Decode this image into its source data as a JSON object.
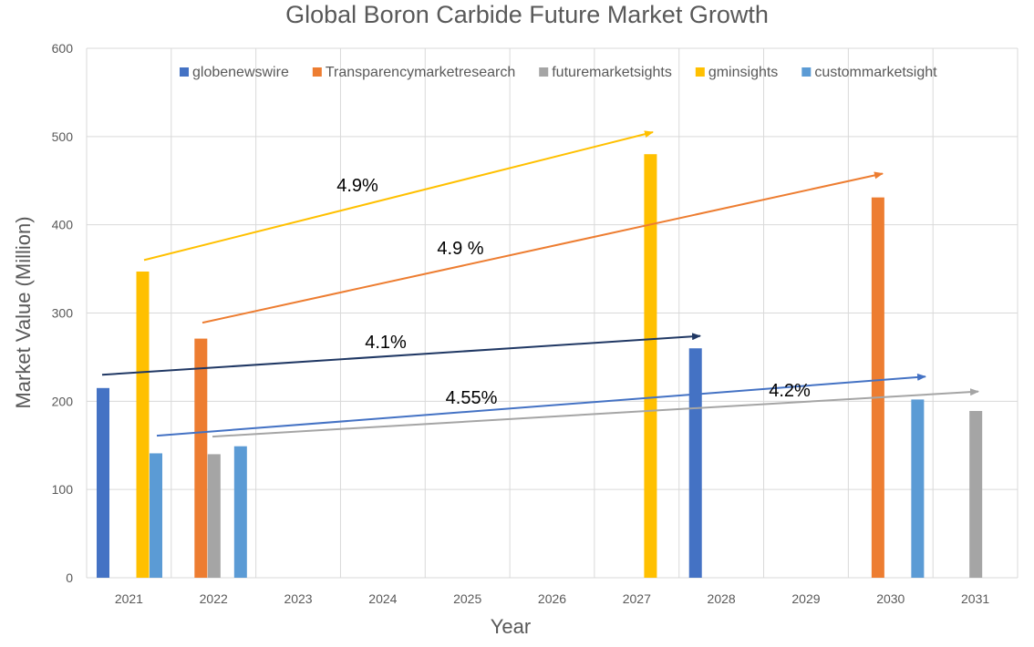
{
  "chart_data": {
    "type": "bar",
    "title": "Global Boron Carbide Future Market Growth",
    "xlabel": "Year",
    "ylabel": "Market Value (Million)",
    "ylim": [
      0,
      600
    ],
    "yticks": [
      0,
      100,
      200,
      300,
      400,
      500,
      600
    ],
    "categories": [
      "2021",
      "2022",
      "2023",
      "2024",
      "2025",
      "2026",
      "2027",
      "2028",
      "2029",
      "2030",
      "2031"
    ],
    "grid": true,
    "legend_position": "top",
    "series": [
      {
        "name": "globenewswire",
        "color": "#4472C4",
        "values": [
          215,
          null,
          null,
          null,
          null,
          null,
          null,
          260,
          null,
          null,
          null
        ]
      },
      {
        "name": "Transparencymarketresearch",
        "color": "#ED7D31",
        "values": [
          null,
          271,
          null,
          null,
          null,
          null,
          null,
          null,
          null,
          431,
          null
        ]
      },
      {
        "name": "futuremarketsights",
        "color": "#A5A5A5",
        "values": [
          null,
          140,
          null,
          null,
          null,
          null,
          null,
          null,
          null,
          null,
          189
        ]
      },
      {
        "name": "gminsights",
        "color": "#FFC000",
        "values": [
          347,
          null,
          null,
          null,
          null,
          null,
          480,
          null,
          null,
          null,
          null
        ]
      },
      {
        "name": "custommarketsight",
        "color": "#5B9BD5",
        "values": [
          141,
          149,
          null,
          null,
          null,
          null,
          null,
          null,
          null,
          202,
          null
        ]
      }
    ],
    "annotations": [
      {
        "text": "4.9%",
        "color": "#FFC000",
        "from": {
          "x": "2021",
          "y": 360
        },
        "to": {
          "x": "2027",
          "y": 505
        }
      },
      {
        "text": "4.9 %",
        "color": "#ED7D31",
        "from": {
          "x": "2022",
          "y": 289
        },
        "to": {
          "x": "2030",
          "y": 458
        }
      },
      {
        "text": "4.1%",
        "color": "#203864",
        "from": {
          "x": "2021",
          "y": 230
        },
        "to": {
          "x": "2028",
          "y": 274
        }
      },
      {
        "text": "4.55%",
        "color": "#4472C4",
        "from": {
          "x": "2021",
          "y": 161
        },
        "to": {
          "x": "2030",
          "y": 228
        }
      },
      {
        "text": "4.2%",
        "color": "#A5A5A5",
        "from": {
          "x": "2022",
          "y": 160
        },
        "to": {
          "x": "2031",
          "y": 211
        }
      }
    ]
  }
}
